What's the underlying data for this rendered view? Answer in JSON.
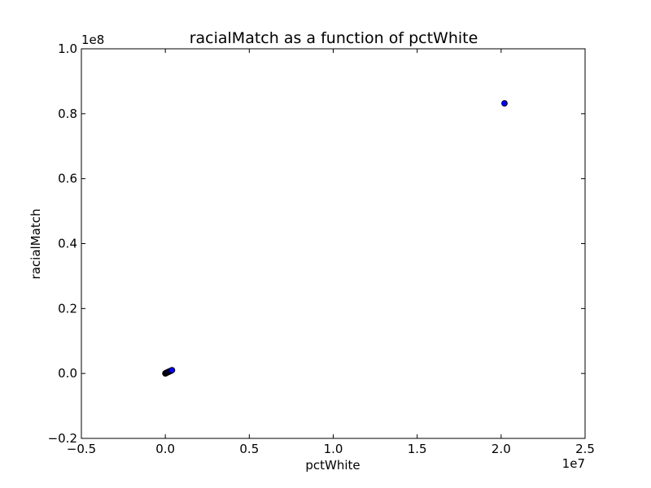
{
  "chart_data": {
    "type": "scatter",
    "title": "racialMatch as a function of pctWhite",
    "xlabel": "pctWhite",
    "ylabel": "racialMatch",
    "xlim": [
      -5000000,
      25000000
    ],
    "ylim": [
      -20000000,
      100000000
    ],
    "x_ticks": [
      -5000000,
      0,
      5000000,
      10000000,
      15000000,
      20000000,
      25000000
    ],
    "y_ticks": [
      -20000000,
      0,
      20000000,
      40000000,
      60000000,
      80000000,
      100000000
    ],
    "x_tick_labels": [
      "−0.5",
      "0.0",
      "0.5",
      "1.0",
      "1.5",
      "2.0",
      "2.5"
    ],
    "y_tick_labels": [
      "−0.2",
      "0.0",
      "0.2",
      "0.4",
      "0.6",
      "0.8",
      "1.0"
    ],
    "x_offset_label": "1e7",
    "y_offset_label": "1e8",
    "grid": false,
    "marker_color": "#0000ff",
    "marker_edge_color": "#000000",
    "points": [
      {
        "x": 0,
        "y": 0
      },
      {
        "x": 20000,
        "y": 60000
      },
      {
        "x": 40000,
        "y": 120000
      },
      {
        "x": 60000,
        "y": 180000
      },
      {
        "x": 80000,
        "y": 220000
      },
      {
        "x": 110000,
        "y": 300000
      },
      {
        "x": 140000,
        "y": 380000
      },
      {
        "x": 170000,
        "y": 440000
      },
      {
        "x": 200000,
        "y": 500000
      },
      {
        "x": 240000,
        "y": 600000
      },
      {
        "x": 280000,
        "y": 700000
      },
      {
        "x": 320000,
        "y": 800000
      },
      {
        "x": 360000,
        "y": 900000
      },
      {
        "x": 400000,
        "y": 1000000
      },
      {
        "x": 20200000,
        "y": 83200000
      }
    ]
  }
}
